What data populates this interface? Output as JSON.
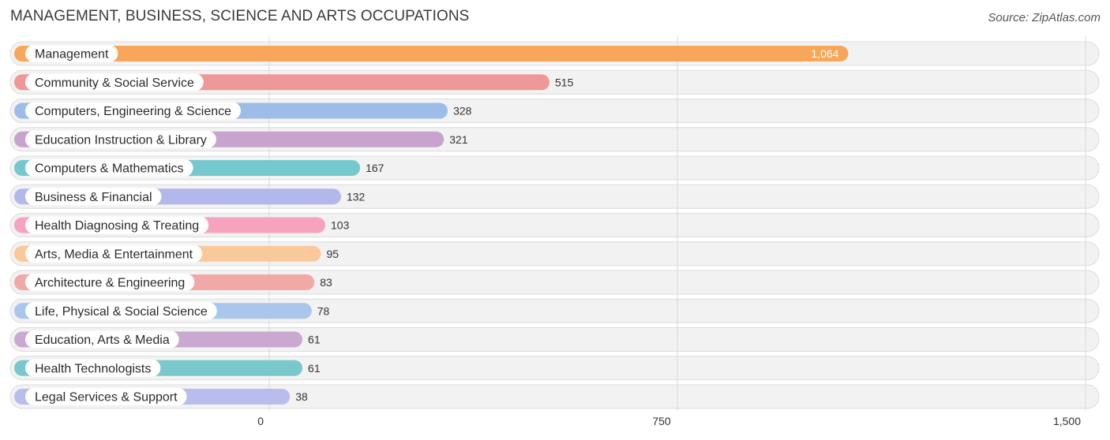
{
  "header": {
    "title": "MANAGEMENT, BUSINESS, SCIENCE AND ARTS OCCUPATIONS",
    "source_label": "Source:",
    "source_name": "ZipAtlas.com"
  },
  "chart_data": {
    "type": "bar",
    "orientation": "horizontal",
    "title": "MANAGEMENT, BUSINESS, SCIENCE AND ARTS OCCUPATIONS",
    "categories": [
      "Management",
      "Community & Social Service",
      "Computers, Engineering & Science",
      "Education Instruction & Library",
      "Computers & Mathematics",
      "Business & Financial",
      "Health Diagnosing & Treating",
      "Arts, Media & Entertainment",
      "Architecture & Engineering",
      "Life, Physical & Social Science",
      "Education, Arts & Media",
      "Health Technologists",
      "Legal Services & Support"
    ],
    "values": [
      1064,
      515,
      328,
      321,
      167,
      132,
      103,
      95,
      83,
      78,
      61,
      61,
      38
    ],
    "value_labels": [
      "1,064",
      "515",
      "328",
      "321",
      "167",
      "132",
      "103",
      "95",
      "83",
      "78",
      "61",
      "61",
      "38"
    ],
    "colors": [
      "#f7a65a",
      "#ee9898",
      "#9dbde8",
      "#c7a3cd",
      "#76c8cf",
      "#b3b8ec",
      "#f6a3bd",
      "#f9c89b",
      "#f0a9a6",
      "#a9c6ec",
      "#c9a9d2",
      "#79c9cc",
      "#b8bdee"
    ],
    "xlim": [
      0,
      1500
    ],
    "xticks": [
      0,
      750,
      1500
    ],
    "xtick_labels": [
      "0",
      "750",
      "1,500"
    ],
    "grid": true
  }
}
